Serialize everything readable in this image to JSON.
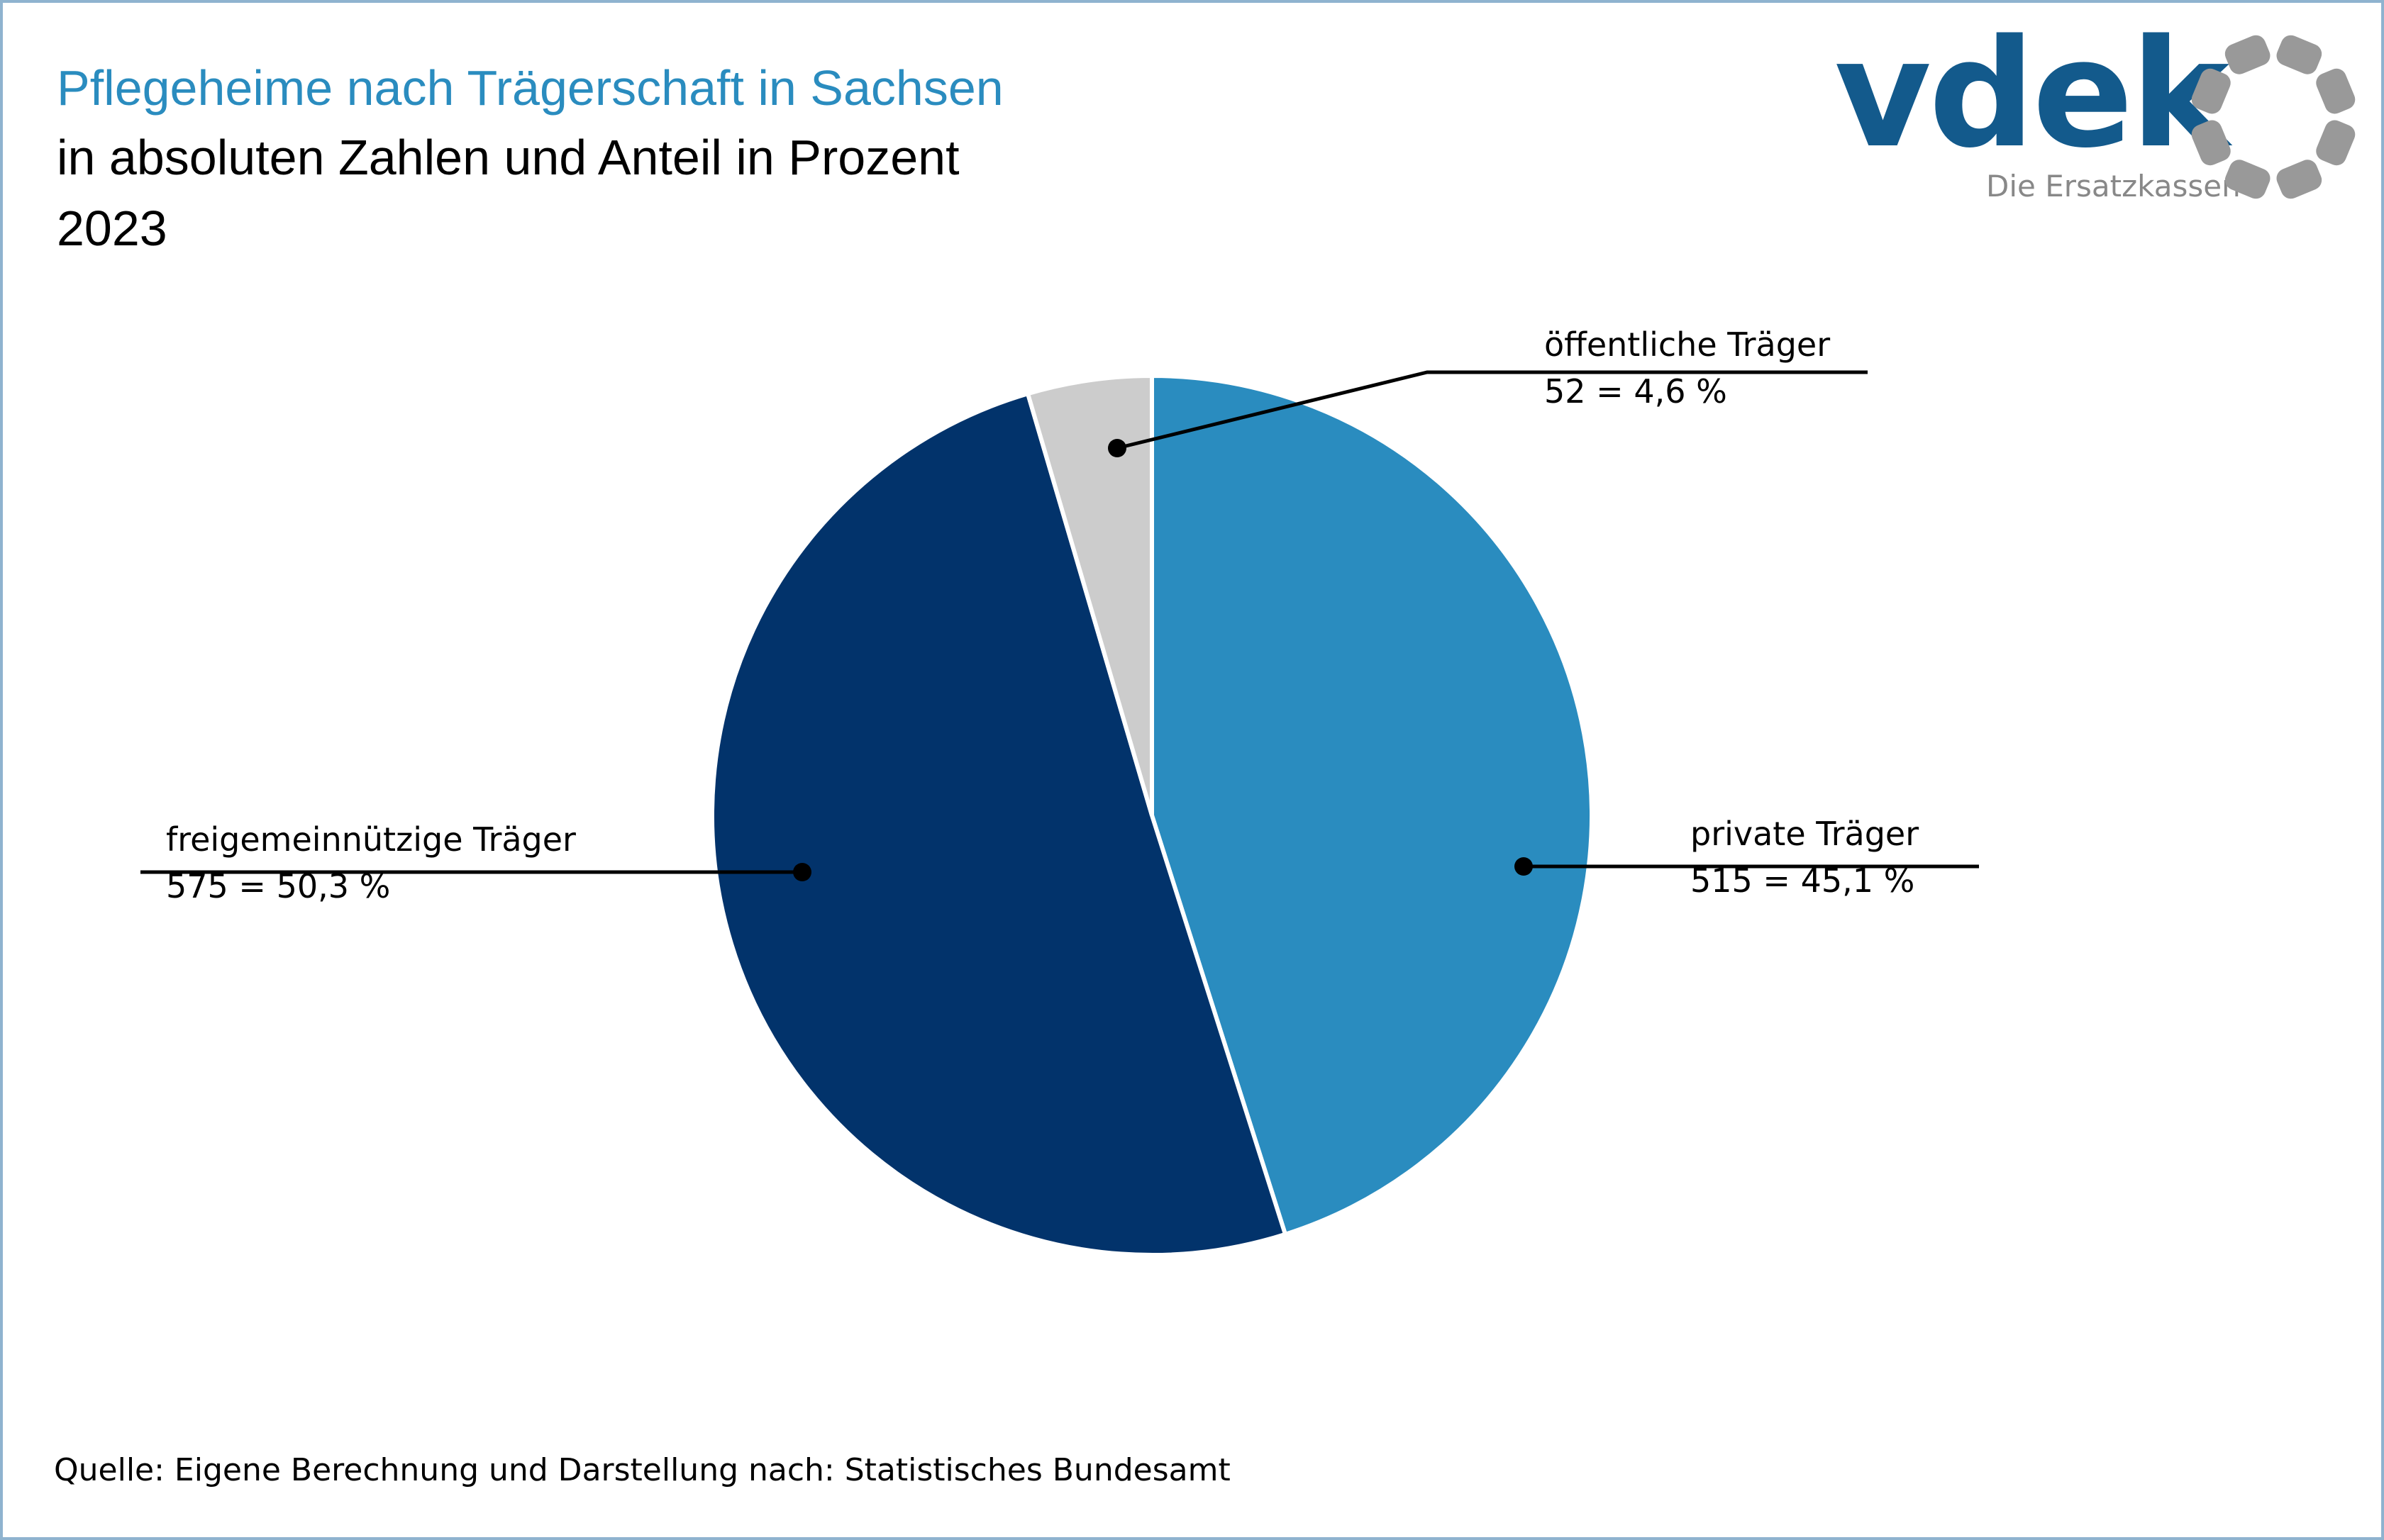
{
  "header": {
    "title": "Pflegeheime nach Trägerschaft in Sachsen",
    "subtitle": "in absoluten Zahlen und Anteil in Prozent",
    "year": "2023"
  },
  "logo": {
    "wordmark": "vdek",
    "tagline": "Die Ersatzkassen",
    "icon": "vdek-ring-logo",
    "colors": {
      "wordmark": "#135a8c",
      "ring": "#999999"
    }
  },
  "source": "Quelle: Eigene Berechnung und Darstellung nach: Statistisches Bundesamt",
  "chart_data": {
    "type": "pie",
    "title": "Pflegeheime nach Trägerschaft in Sachsen",
    "start_angle_deg": 0,
    "direction": "clockwise",
    "slices": [
      {
        "name": "private Träger",
        "count": 515,
        "percent": 45.1,
        "label": "515 = 45,1 %",
        "color": "#2a8cbf"
      },
      {
        "name": "freigemeinnützige Träger",
        "count": 575,
        "percent": 50.3,
        "label": "575 = 50,3 %",
        "color": "#02336b"
      },
      {
        "name": "öffentliche Träger",
        "count": 52,
        "percent": 4.6,
        "label": "52 = 4,6 %",
        "color": "#cccccc"
      }
    ],
    "legend": "none",
    "labels": "callout lines with dots"
  }
}
